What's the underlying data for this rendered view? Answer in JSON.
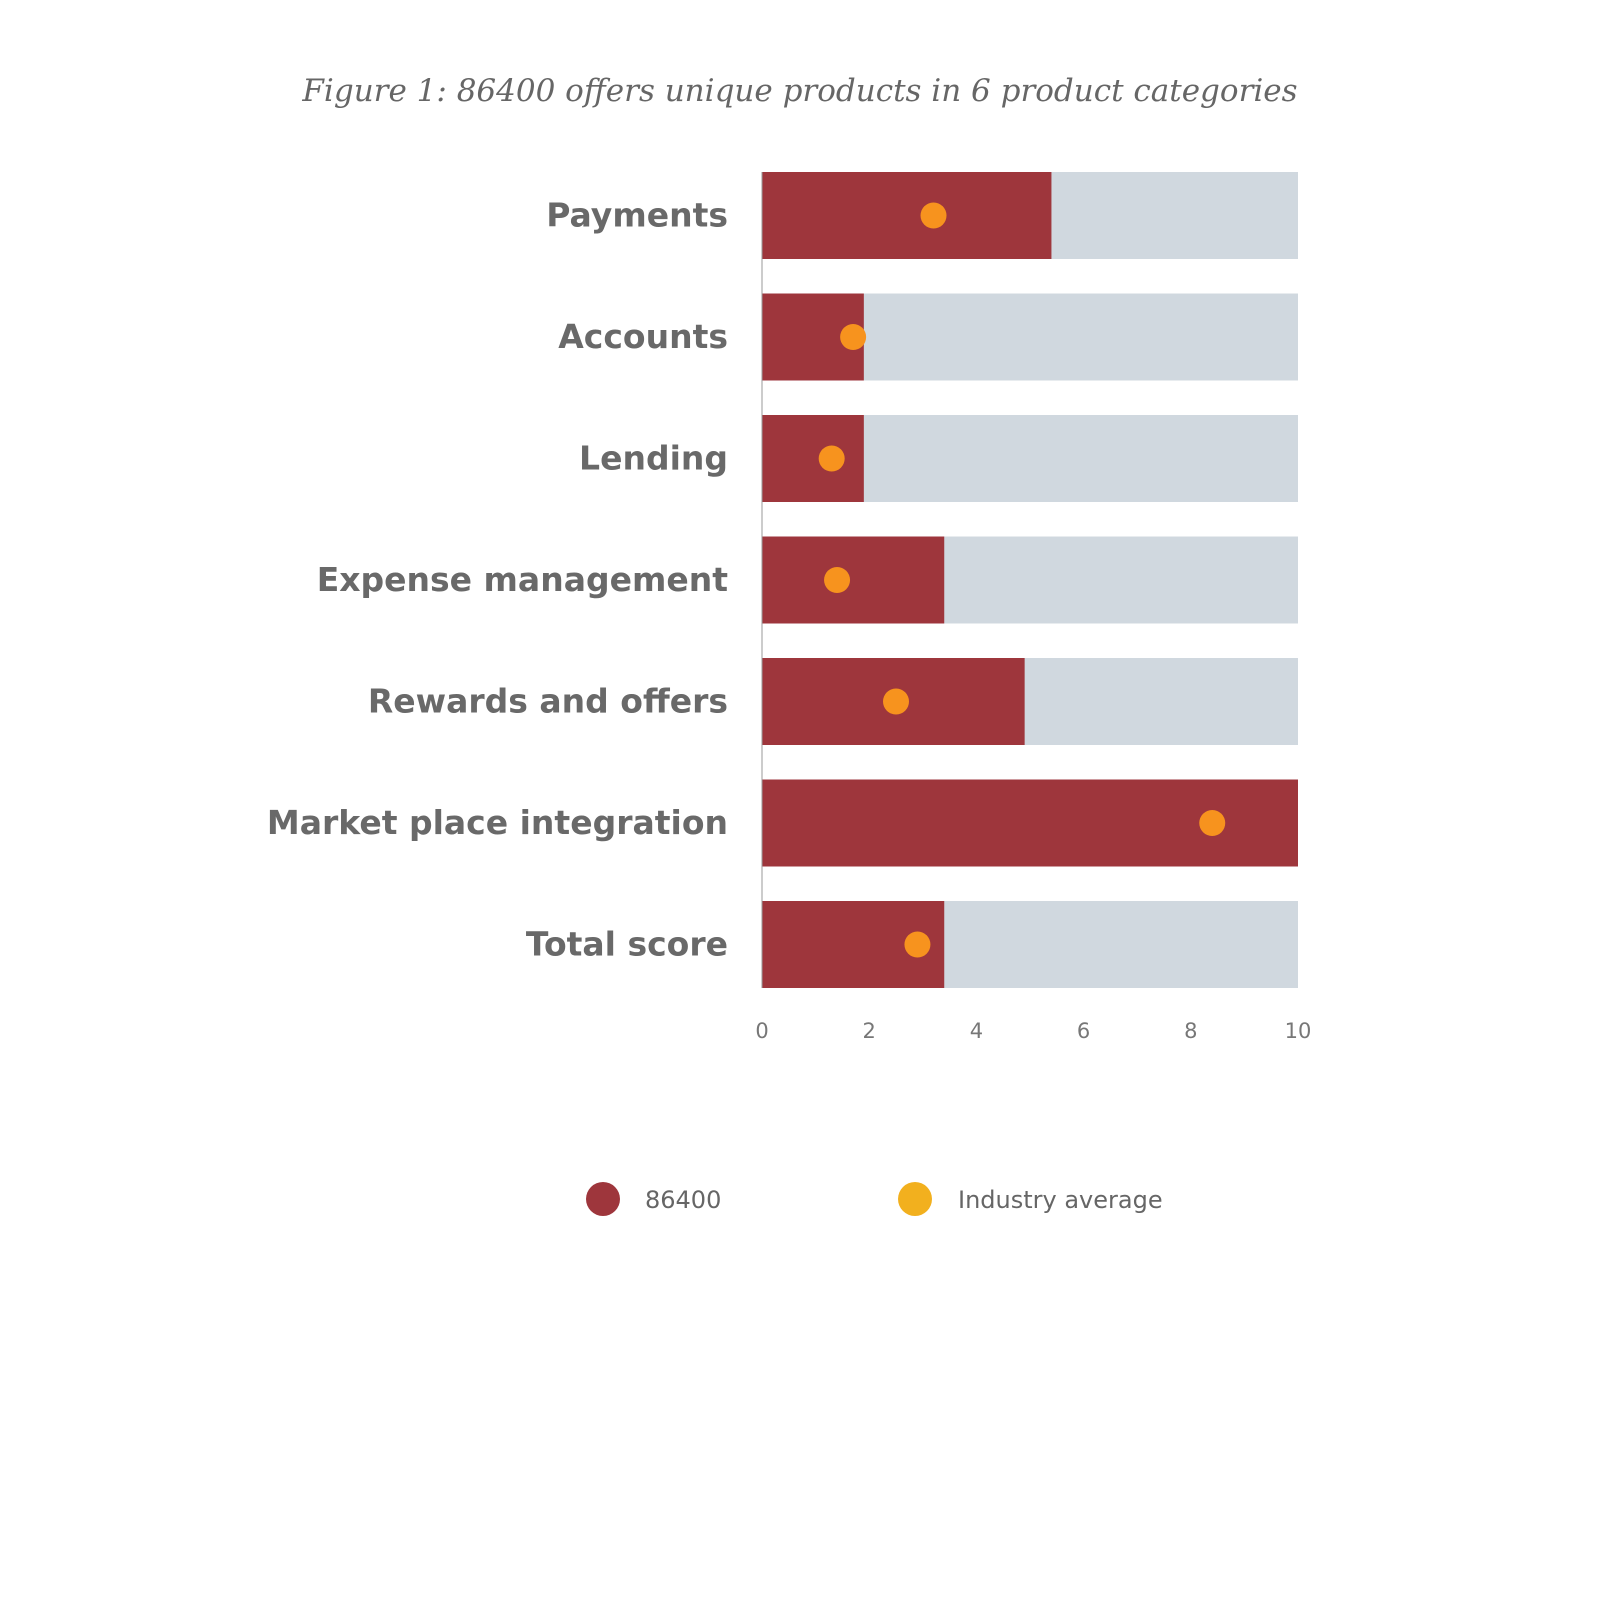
{
  "chart_data": {
    "type": "bar",
    "orientation": "horizontal",
    "title": "Figure 1: 86400 offers unique products in 6 product categories",
    "xlabel": "",
    "ylabel": "",
    "xlim": [
      0,
      10
    ],
    "x_ticks": [
      "0",
      "2",
      "4",
      "6",
      "8",
      "10"
    ],
    "grid": false,
    "legend_position": "bottom",
    "categories": [
      "Payments",
      "Accounts",
      "Lending",
      "Expense management",
      "Rewards and offers",
      "Market place integration",
      "Total score"
    ],
    "series": [
      {
        "name": "86400",
        "kind": "bar",
        "color": "#9e363c",
        "values": [
          5.4,
          1.9,
          1.9,
          3.4,
          4.9,
          10,
          3.4
        ]
      },
      {
        "name": "Industry average",
        "kind": "point",
        "color": "#f7931e",
        "legend_color": "#f2b01e",
        "values": [
          3.2,
          1.7,
          1.3,
          1.4,
          2.5,
          8.4,
          2.9
        ]
      }
    ],
    "track_color": "#d0d8df"
  }
}
